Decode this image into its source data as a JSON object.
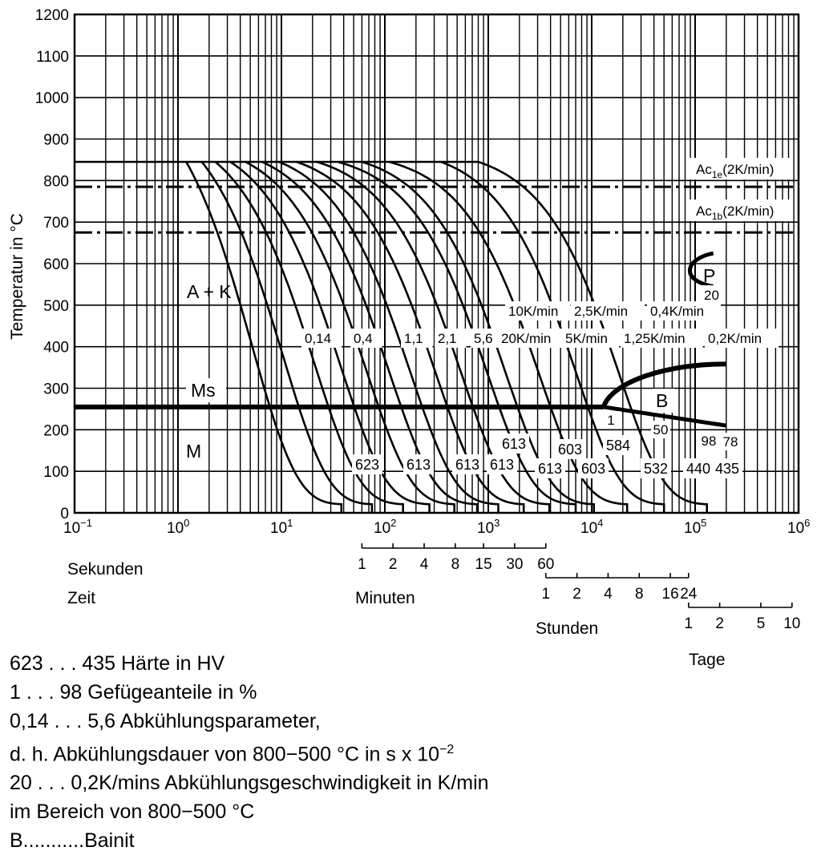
{
  "chart_data": {
    "type": "line",
    "title": "",
    "ylabel": "Temperatur in °C",
    "xlabel": "Zeit",
    "xscale": "log",
    "xlim": [
      0.1,
      1000000
    ],
    "ylim": [
      0,
      1200
    ],
    "y_ticks": [
      "0",
      "100",
      "200",
      "300",
      "400",
      "500",
      "600",
      "700",
      "800",
      "900",
      "1000",
      "1100",
      "1200"
    ],
    "x_ticks": [
      {
        "base": "10",
        "exp": "−1",
        "value": 0.1
      },
      {
        "base": "10",
        "exp": "0",
        "value": 1
      },
      {
        "base": "10",
        "exp": "1",
        "value": 10
      },
      {
        "base": "10",
        "exp": "2",
        "value": 100
      },
      {
        "base": "10",
        "exp": "3",
        "value": 1000
      },
      {
        "base": "10",
        "exp": "4",
        "value": 10000
      },
      {
        "base": "10",
        "exp": "5",
        "value": 100000
      },
      {
        "base": "10",
        "exp": "6",
        "value": 1000000
      }
    ],
    "grid": true,
    "reference_lines": [
      {
        "name": "Ac1e",
        "label_main": "Ac",
        "label_sub": "1e",
        "label_rest": "(2K/min)",
        "y": 785
      },
      {
        "name": "Ac1b",
        "label_main": "Ac",
        "label_sub": "1b",
        "label_rest": "(2K/min)",
        "y": 675
      }
    ],
    "start_temperature": 845,
    "cooling_curves": [
      {
        "param": "0,14",
        "t_start": 1.2,
        "t_end": 38,
        "hardness": "623"
      },
      {
        "param": "",
        "t_start": 1.7,
        "t_end": 75,
        "hardness": ""
      },
      {
        "param": "0,4",
        "t_start": 2.3,
        "t_end": 150,
        "hardness": "613"
      },
      {
        "param": "",
        "t_start": 3.2,
        "t_end": 270,
        "hardness": ""
      },
      {
        "param": "1,1",
        "t_start": 4.5,
        "t_end": 470,
        "hardness": "613"
      },
      {
        "param": "2,1",
        "t_start": 6.5,
        "t_end": 780,
        "hardness": "613"
      },
      {
        "param": "5,6",
        "t_start": 9.5,
        "t_end": 1250,
        "hardness": "613"
      },
      {
        "param": "20K/min",
        "t_start": 14,
        "t_end": 2200,
        "hardness": "613"
      },
      {
        "param": "10K/min",
        "t_start": 22,
        "t_end": 3900,
        "hardness": "613"
      },
      {
        "param": "5K/min",
        "t_start": 35,
        "t_end": 7000,
        "hardness": "603"
      },
      {
        "param": "2,5K/min",
        "t_start": 60,
        "t_end": 10500,
        "hardness": "603"
      },
      {
        "param": "1,25K/min",
        "t_start": 110,
        "t_end": 22000,
        "hardness": "584"
      },
      {
        "param": "0,4K/min",
        "t_start": 350,
        "t_end": 50000,
        "hardness": "532"
      },
      {
        "param": "0,2K/min",
        "t_start": 800,
        "t_end": 130000,
        "hardness": "440"
      }
    ],
    "curve_labels": [
      "0,14",
      "0,4",
      "1,1",
      "2,1",
      "5,6",
      "20K/min",
      "5K/min",
      "1,25K/min",
      "0,2K/min",
      "10K/min",
      "2,5K/min",
      "0,4K/min",
      "20"
    ],
    "hardness_labels": [
      "623",
      "613",
      "613",
      "613",
      "613",
      "613",
      "603",
      "603",
      "584",
      "532",
      "440",
      "435"
    ],
    "phase_fraction_labels": [
      "1",
      "50",
      "98",
      "78"
    ],
    "regions": {
      "austenite_carbide": "A + K",
      "martensite_start": "Ms",
      "martensite": "M",
      "bainite": "B",
      "perlite": "P"
    },
    "ms_line": {
      "y": 255,
      "t_end": 200000
    },
    "time_scales": {
      "seconds_label": "Sekunden",
      "time_label": "Zeit",
      "minutes_label": "Minuten",
      "minutes_ticks": [
        "1",
        "2",
        "4",
        "8",
        "15",
        "30",
        "60"
      ],
      "hours_label": "Stunden",
      "hours_ticks": [
        "1",
        "2",
        "4",
        "8",
        "16",
        "24"
      ],
      "days_label": "Tage",
      "days_ticks": [
        "1",
        "2",
        "5",
        "10"
      ]
    }
  },
  "legend": {
    "line1": "623 . . . 435 Härte in HV",
    "line2": "1 . . . 98 Gefügeanteile in %",
    "line3": "0,14 . . . 5,6 Abkühlungsparameter,",
    "line4_prefix": "d. h. Abkühlungsdauer von 800−500 °C in s x 10",
    "line4_exp": "−2",
    "line5": "20 . . . 0,2K/mins Abkühlungsgeschwindigkeit in K/min",
    "line6": "im Bereich von 800−500 °C",
    "line7": "B...........Bainit"
  }
}
